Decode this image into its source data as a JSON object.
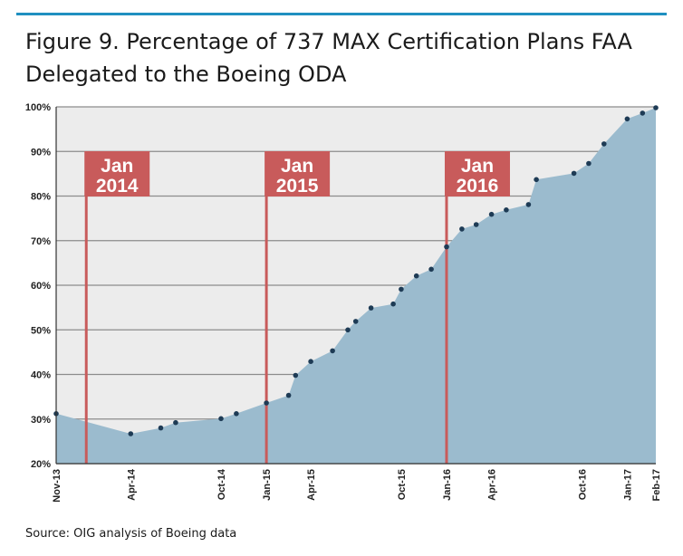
{
  "title": "Figure 9. Percentage of 737 MAX Certification Plans FAA Delegated to the Boeing ODA",
  "source": "Source: OIG analysis of Boeing data",
  "colors": {
    "area": "#9bbbce",
    "marker": "#c85b5b",
    "point": "#1e3b55",
    "grid": "#8c8c8c",
    "topline": "#1f8fc0"
  },
  "chart_data": {
    "type": "area",
    "title": "",
    "xlabel": "",
    "ylabel": "",
    "ylim": [
      20,
      100
    ],
    "grid": true,
    "y_ticks": [
      "20%",
      "30%",
      "40%",
      "50%",
      "60%",
      "70%",
      "80%",
      "90%",
      "100%"
    ],
    "y_tick_values": [
      20,
      30,
      40,
      50,
      60,
      70,
      80,
      90,
      100
    ],
    "x_range": [
      "2013-11-01",
      "2017-02-28"
    ],
    "x_ticks": [
      {
        "date": "2013-11-01",
        "label": "Nov-13"
      },
      {
        "date": "2014-04-01",
        "label": "Apr-14"
      },
      {
        "date": "2014-10-01",
        "label": "Oct-14"
      },
      {
        "date": "2015-01-01",
        "label": "Jan-15"
      },
      {
        "date": "2015-04-01",
        "label": "Apr-15"
      },
      {
        "date": "2015-10-01",
        "label": "Oct-15"
      },
      {
        "date": "2016-01-01",
        "label": "Jan-16"
      },
      {
        "date": "2016-04-01",
        "label": "Apr-16"
      },
      {
        "date": "2016-10-01",
        "label": "Oct-16"
      },
      {
        "date": "2017-01-01",
        "label": "Jan-17"
      },
      {
        "date": "2017-02-28",
        "label": "Feb-17"
      }
    ],
    "markers": [
      {
        "date": "2014-01-01",
        "month": "Jan",
        "year": "2014"
      },
      {
        "date": "2015-01-01",
        "month": "Jan",
        "year": "2015"
      },
      {
        "date": "2016-01-01",
        "month": "Jan",
        "year": "2016"
      }
    ],
    "points": [
      {
        "x": "2013-11-01",
        "y": 31.2
      },
      {
        "x": "2014-04-01",
        "y": 26.7
      },
      {
        "x": "2014-06-01",
        "y": 28.0
      },
      {
        "x": "2014-07-01",
        "y": 29.2
      },
      {
        "x": "2014-10-01",
        "y": 30.1
      },
      {
        "x": "2014-11-01",
        "y": 31.2
      },
      {
        "x": "2015-01-01",
        "y": 33.6
      },
      {
        "x": "2015-02-15",
        "y": 35.3
      },
      {
        "x": "2015-03-01",
        "y": 39.8
      },
      {
        "x": "2015-04-01",
        "y": 42.9
      },
      {
        "x": "2015-05-15",
        "y": 45.3
      },
      {
        "x": "2015-06-15",
        "y": 50.0
      },
      {
        "x": "2015-07-01",
        "y": 51.9
      },
      {
        "x": "2015-08-01",
        "y": 54.9
      },
      {
        "x": "2015-09-15",
        "y": 55.8
      },
      {
        "x": "2015-10-01",
        "y": 59.1
      },
      {
        "x": "2015-11-01",
        "y": 62.1
      },
      {
        "x": "2015-12-01",
        "y": 63.6
      },
      {
        "x": "2016-01-01",
        "y": 68.6
      },
      {
        "x": "2016-02-01",
        "y": 72.6
      },
      {
        "x": "2016-03-01",
        "y": 73.6
      },
      {
        "x": "2016-04-01",
        "y": 75.9
      },
      {
        "x": "2016-05-01",
        "y": 76.9
      },
      {
        "x": "2016-06-15",
        "y": 78.1
      },
      {
        "x": "2016-07-01",
        "y": 83.7
      },
      {
        "x": "2016-09-15",
        "y": 85.1
      },
      {
        "x": "2016-10-15",
        "y": 87.3
      },
      {
        "x": "2016-11-15",
        "y": 91.7
      },
      {
        "x": "2017-01-01",
        "y": 97.3
      },
      {
        "x": "2017-02-01",
        "y": 98.6
      },
      {
        "x": "2017-02-28",
        "y": 99.8
      }
    ]
  }
}
